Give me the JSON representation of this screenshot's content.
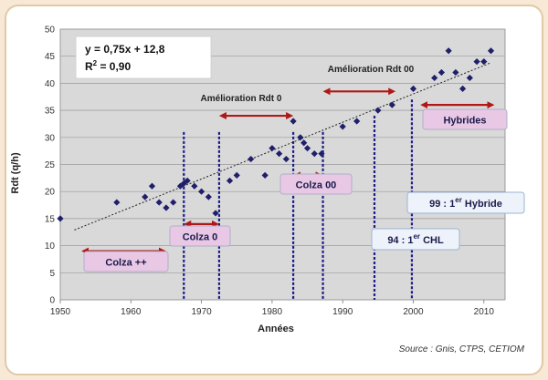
{
  "chart_data": {
    "type": "scatter",
    "title": "",
    "xlabel": "Années",
    "ylabel": "Rdt (q/h)",
    "xlim": [
      1950,
      2013
    ],
    "ylim": [
      0,
      50
    ],
    "x_ticks": [
      1950,
      1960,
      1970,
      1980,
      1990,
      2000,
      2010
    ],
    "y_ticks": [
      0,
      5,
      10,
      15,
      20,
      25,
      30,
      35,
      40,
      45,
      50
    ],
    "grid": "horizontal",
    "points": [
      [
        1950,
        15
      ],
      [
        1958,
        18
      ],
      [
        1962,
        19
      ],
      [
        1963,
        21
      ],
      [
        1964,
        18
      ],
      [
        1965,
        17
      ],
      [
        1966,
        18
      ],
      [
        1967,
        21
      ],
      [
        1967.5,
        21.5
      ],
      [
        1968,
        22
      ],
      [
        1969,
        21
      ],
      [
        1970,
        20
      ],
      [
        1971,
        19
      ],
      [
        1972,
        16
      ],
      [
        1974,
        22
      ],
      [
        1975,
        23
      ],
      [
        1977,
        26
      ],
      [
        1979,
        23
      ],
      [
        1980,
        28
      ],
      [
        1981,
        27
      ],
      [
        1982,
        26
      ],
      [
        1983,
        33
      ],
      [
        1984,
        30
      ],
      [
        1984.5,
        29
      ],
      [
        1985,
        28
      ],
      [
        1986,
        27
      ],
      [
        1987,
        27
      ],
      [
        1990,
        32
      ],
      [
        1992,
        33
      ],
      [
        1995,
        35
      ],
      [
        1997,
        36
      ],
      [
        2000,
        39
      ],
      [
        2003,
        41
      ],
      [
        2004,
        42
      ],
      [
        2005,
        46
      ],
      [
        2006,
        42
      ],
      [
        2007,
        39
      ],
      [
        2008,
        41
      ],
      [
        2009,
        44
      ],
      [
        2010,
        44
      ],
      [
        2011,
        46
      ]
    ],
    "trendline": {
      "slope": 0.75,
      "intercept": 12.8,
      "from": 1952,
      "to": 2011
    },
    "vertical_markers": [
      1967.5,
      1972.5,
      1983,
      1987.2,
      1994.5,
      1999.8
    ],
    "equation_line1": "y = 0,75x + 12,8",
    "equation_line2_prefix": "R",
    "equation_line2_sup": "2",
    "equation_line2_suffix": " = 0,90",
    "annotations": [
      {
        "id": "colza-pp",
        "text": "Colza ++",
        "arrow": [
          1953,
          1965
        ],
        "arrow_y": 9,
        "box": true
      },
      {
        "id": "colza-0",
        "text": "Colza 0",
        "arrow": [
          1967.5,
          1972.5
        ],
        "arrow_y": 14,
        "box": true
      },
      {
        "id": "colza-00",
        "text": "Colza 00",
        "arrow": [
          1983,
          1987.2
        ],
        "arrow_y": 23,
        "box": true
      },
      {
        "id": "amel-0",
        "text": "Amélioration Rdt 0",
        "arrow": [
          1972.5,
          1983
        ],
        "arrow_y": 34,
        "box": false
      },
      {
        "id": "amel-00",
        "text": "Amélioration Rdt 00",
        "arrow": [
          1987.2,
          1997.5
        ],
        "arrow_y": 38.5,
        "box": false
      },
      {
        "id": "hybrides",
        "text": "Hybrides",
        "arrow": [
          2001,
          2011.5
        ],
        "arrow_y": 36,
        "box": true
      }
    ],
    "callout_chl_prefix": "94 : 1",
    "callout_chl_sup": "er",
    "callout_chl_suffix": " CHL",
    "callout_hybride_prefix": "99 : 1",
    "callout_hybride_sup": "er",
    "callout_hybride_suffix": " Hybride"
  },
  "source": "Source : Gnis, CTPS, CETIOM",
  "colors": {
    "background": "#f7e9d6",
    "plot_area": "#d9d9d9",
    "marker": "#1f1f6b",
    "vertical_lines": "#1c1c8c",
    "arrows": "#b01818",
    "label_box": "#e9c8e6",
    "label_box_border": "#b0b0c8"
  }
}
